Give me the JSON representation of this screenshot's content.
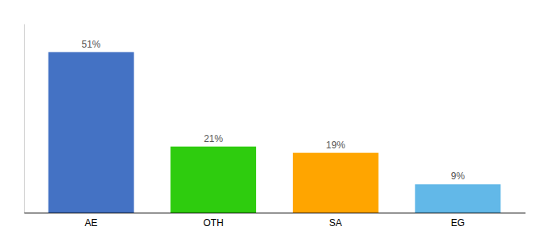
{
  "chart_data": {
    "type": "bar",
    "categories": [
      "AE",
      "OTH",
      "SA",
      "EG"
    ],
    "values": [
      51,
      21,
      19,
      9
    ],
    "value_labels": [
      "51%",
      "21%",
      "19%",
      "9%"
    ],
    "colors": [
      "#4472C4",
      "#2ECC0E",
      "#FFA500",
      "#62B8E8"
    ],
    "ylim": [
      0,
      60
    ],
    "data_labels": true,
    "tick_labels": "x",
    "grid": false
  }
}
